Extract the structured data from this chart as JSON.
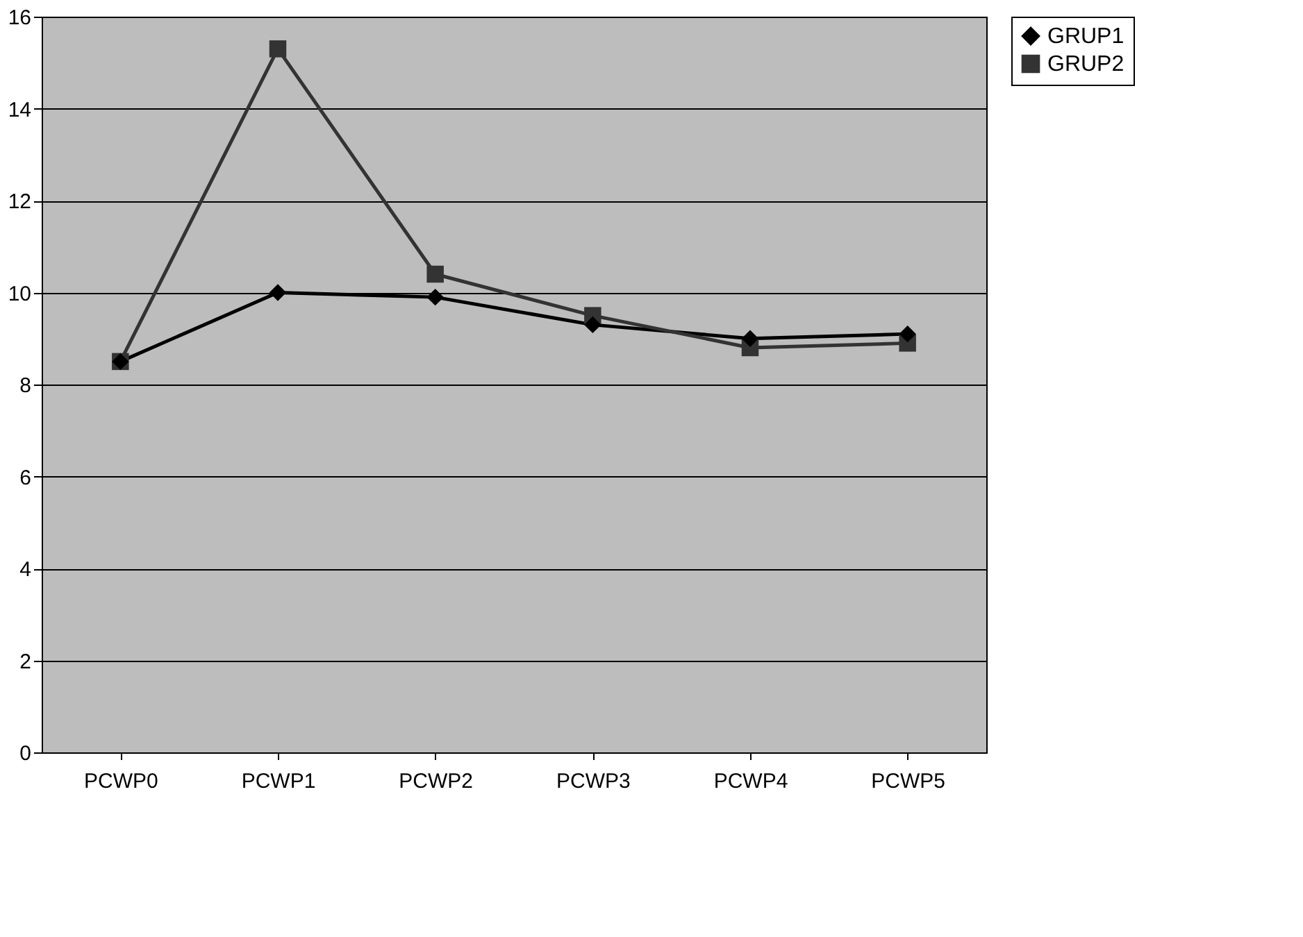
{
  "chart_data": {
    "type": "line",
    "categories": [
      "PCWP0",
      "PCWP1",
      "PCWP2",
      "PCWP3",
      "PCWP4",
      "PCWP5"
    ],
    "series": [
      {
        "name": "GRUP1",
        "color": "#000000",
        "marker": "diamond",
        "values": [
          8.5,
          10.0,
          9.9,
          9.3,
          9.0,
          9.1
        ]
      },
      {
        "name": "GRUP2",
        "color": "#333333",
        "marker": "square",
        "values": [
          8.5,
          15.3,
          10.4,
          9.5,
          8.8,
          8.9
        ]
      }
    ],
    "ylim": [
      0,
      16
    ],
    "yticks": [
      0,
      2,
      4,
      6,
      8,
      10,
      12,
      14,
      16
    ],
    "grid": "y",
    "legend": "right",
    "line_style": "solid"
  }
}
